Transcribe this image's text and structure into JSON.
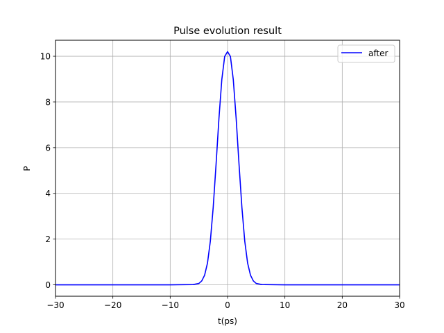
{
  "chart_data": {
    "type": "line",
    "title": "Pulse evolution result",
    "xlabel": "t(ps)",
    "ylabel": "P",
    "xlim": [
      -30,
      30
    ],
    "ylim": [
      -0.5,
      10.7
    ],
    "xticks": [
      -30,
      -20,
      -10,
      0,
      10,
      20,
      30
    ],
    "xtick_labels": [
      "−30",
      "−20",
      "−10",
      "0",
      "10",
      "20",
      "30"
    ],
    "yticks": [
      0,
      2,
      4,
      6,
      8,
      10
    ],
    "ytick_labels": [
      "0",
      "2",
      "4",
      "6",
      "8",
      "10"
    ],
    "grid": true,
    "legend_position": "top-right",
    "series": [
      {
        "name": "after",
        "color": "#0000ff",
        "x": [
          -30,
          -10,
          -6,
          -5,
          -4.5,
          -4,
          -3.5,
          -3,
          -2.5,
          -2,
          -1.5,
          -1,
          -0.5,
          0,
          0.5,
          1,
          1.5,
          2,
          2.5,
          3,
          3.5,
          4,
          4.5,
          5,
          6,
          10,
          30
        ],
        "y": [
          0,
          0,
          0.01,
          0.06,
          0.17,
          0.42,
          0.95,
          1.91,
          3.39,
          5.28,
          7.28,
          8.98,
          9.99,
          10.2,
          9.99,
          8.98,
          7.28,
          5.28,
          3.39,
          1.91,
          0.95,
          0.42,
          0.17,
          0.06,
          0.01,
          0,
          0
        ]
      }
    ]
  }
}
